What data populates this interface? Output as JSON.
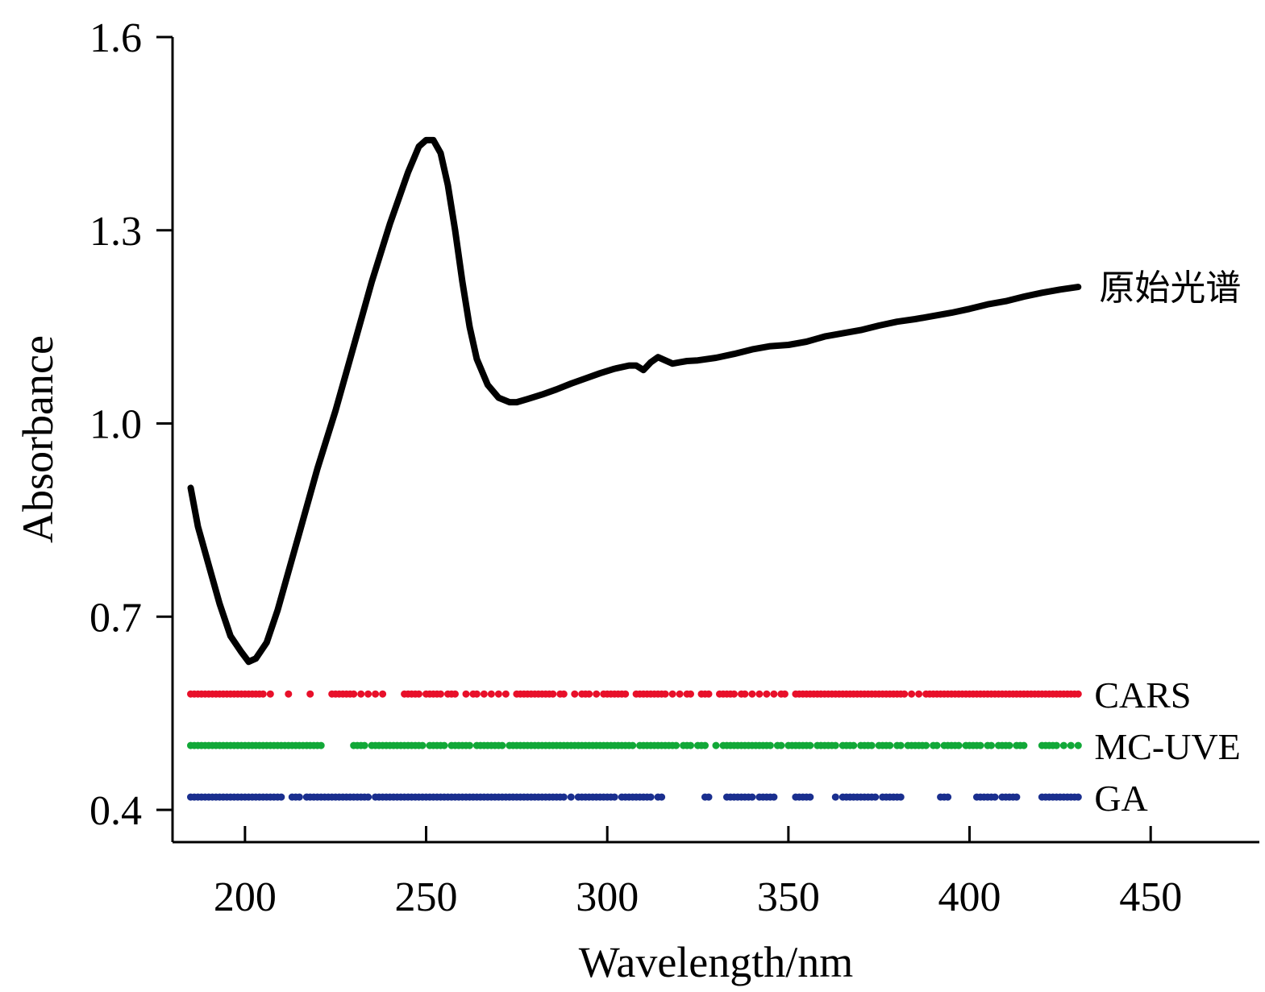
{
  "chart_data": {
    "type": "line",
    "title": "",
    "xlabel": "Wavelength/nm",
    "ylabel": "Absorbance",
    "xlim": [
      180,
      480
    ],
    "ylim": [
      0.35,
      1.6
    ],
    "x_ticks": [
      "200",
      "250",
      "300",
      "350",
      "400",
      "450"
    ],
    "x_tick_values": [
      200,
      250,
      300,
      350,
      400,
      450
    ],
    "y_ticks": [
      "0.4",
      "0.7",
      "1.0",
      "1.3",
      "1.6"
    ],
    "y_tick_values": [
      0.4,
      0.7,
      1.0,
      1.3,
      1.6
    ],
    "grid": false,
    "legend": "none",
    "series": [
      {
        "name": "原始光谱",
        "kind": "line",
        "color": "#000000",
        "x": [
          185,
          187,
          190,
          193,
          196,
          199,
          201,
          203,
          206,
          209,
          212,
          215,
          220,
          225,
          230,
          235,
          240,
          245,
          248,
          250,
          252,
          254,
          256,
          258,
          260,
          262,
          264,
          267,
          270,
          273,
          275,
          278,
          282,
          286,
          290,
          294,
          298,
          302,
          306,
          308,
          310,
          312,
          314,
          316,
          318,
          320,
          322,
          325,
          330,
          335,
          340,
          345,
          350,
          355,
          360,
          365,
          370,
          375,
          380,
          385,
          390,
          395,
          400,
          405,
          410,
          415,
          420,
          425,
          430
        ],
        "y": [
          0.9,
          0.84,
          0.78,
          0.72,
          0.67,
          0.645,
          0.63,
          0.635,
          0.66,
          0.71,
          0.77,
          0.83,
          0.93,
          1.02,
          1.12,
          1.22,
          1.31,
          1.39,
          1.43,
          1.44,
          1.44,
          1.42,
          1.37,
          1.3,
          1.22,
          1.15,
          1.1,
          1.06,
          1.04,
          1.033,
          1.033,
          1.038,
          1.045,
          1.053,
          1.062,
          1.07,
          1.078,
          1.085,
          1.09,
          1.09,
          1.083,
          1.095,
          1.103,
          1.098,
          1.093,
          1.095,
          1.097,
          1.098,
          1.102,
          1.108,
          1.115,
          1.12,
          1.122,
          1.127,
          1.135,
          1.14,
          1.145,
          1.152,
          1.158,
          1.162,
          1.167,
          1.172,
          1.178,
          1.185,
          1.19,
          1.197,
          1.203,
          1.208,
          1.212
        ]
      },
      {
        "name": "CARS",
        "kind": "points",
        "color": "#e8102a",
        "y": 0.58,
        "x": [
          185,
          186,
          187,
          188,
          189,
          190,
          191,
          192,
          193,
          194,
          195,
          196,
          197,
          198,
          199,
          200,
          201,
          202,
          203,
          204,
          205,
          207,
          212,
          218,
          224,
          225,
          226,
          227,
          228,
          229,
          230,
          232,
          234,
          236,
          238,
          244,
          245,
          246,
          247,
          248,
          250,
          251,
          252,
          253,
          254,
          256,
          257,
          258,
          261,
          263,
          264,
          266,
          268,
          270,
          272,
          275,
          276,
          277,
          278,
          279,
          280,
          281,
          282,
          283,
          284,
          285,
          287,
          288,
          291,
          293,
          294,
          295,
          297,
          299,
          300,
          301,
          302,
          303,
          304,
          305,
          308,
          309,
          310,
          311,
          312,
          313,
          314,
          315,
          316,
          318,
          320,
          322,
          323,
          326,
          327,
          328,
          331,
          332,
          333,
          334,
          335,
          337,
          338,
          340,
          342,
          344,
          346,
          348,
          349,
          352,
          353,
          354,
          355,
          356,
          357,
          358,
          359,
          360,
          361,
          362,
          363,
          364,
          365,
          366,
          367,
          368,
          369,
          370,
          371,
          372,
          373,
          374,
          375,
          376,
          377,
          378,
          379,
          380,
          381,
          382,
          384,
          386,
          388,
          389,
          390,
          391,
          392,
          393,
          394,
          395,
          396,
          397,
          398,
          399,
          400,
          401,
          402,
          403,
          404,
          405,
          406,
          407,
          408,
          409,
          410,
          411,
          412,
          413,
          414,
          415,
          416,
          417,
          418,
          419,
          420,
          421,
          422,
          423,
          424,
          425,
          426,
          427,
          428,
          429,
          430
        ]
      },
      {
        "name": "MC-UVE",
        "kind": "points",
        "color": "#12a838",
        "y": 0.5,
        "x": [
          185,
          186,
          187,
          188,
          189,
          190,
          191,
          192,
          193,
          194,
          195,
          196,
          197,
          198,
          199,
          200,
          201,
          202,
          203,
          204,
          205,
          206,
          207,
          208,
          209,
          210,
          211,
          212,
          213,
          214,
          215,
          216,
          217,
          218,
          219,
          220,
          221,
          230,
          231,
          232,
          233,
          235,
          236,
          237,
          238,
          239,
          240,
          241,
          242,
          243,
          244,
          245,
          246,
          247,
          248,
          249,
          251,
          252,
          253,
          254,
          255,
          257,
          258,
          259,
          260,
          261,
          262,
          264,
          265,
          266,
          267,
          268,
          269,
          270,
          271,
          273,
          274,
          275,
          276,
          277,
          278,
          279,
          280,
          281,
          282,
          283,
          284,
          285,
          286,
          287,
          288,
          289,
          290,
          291,
          292,
          293,
          294,
          295,
          296,
          297,
          298,
          299,
          300,
          301,
          302,
          303,
          304,
          305,
          306,
          307,
          309,
          310,
          311,
          312,
          313,
          314,
          315,
          316,
          317,
          318,
          319,
          321,
          322,
          323,
          325,
          326,
          327,
          330,
          332,
          333,
          334,
          335,
          336,
          337,
          338,
          339,
          340,
          341,
          342,
          343,
          344,
          345,
          347,
          348,
          350,
          351,
          352,
          353,
          354,
          355,
          356,
          358,
          359,
          360,
          361,
          362,
          363,
          365,
          366,
          367,
          368,
          370,
          371,
          372,
          373,
          375,
          376,
          377,
          378,
          380,
          381,
          383,
          384,
          385,
          386,
          387,
          388,
          390,
          391,
          393,
          394,
          395,
          396,
          397,
          399,
          400,
          401,
          402,
          403,
          405,
          406,
          408,
          409,
          410,
          411,
          413,
          414,
          415,
          420,
          421,
          422,
          423,
          424,
          426,
          428,
          430
        ]
      },
      {
        "name": "GA",
        "kind": "points",
        "color": "#1a2f8f",
        "y": 0.42,
        "x": [
          185,
          186,
          187,
          188,
          189,
          190,
          191,
          192,
          193,
          194,
          195,
          196,
          197,
          198,
          199,
          200,
          201,
          202,
          203,
          204,
          205,
          206,
          207,
          208,
          209,
          210,
          213,
          214,
          215,
          217,
          218,
          219,
          220,
          221,
          222,
          223,
          224,
          225,
          226,
          227,
          228,
          229,
          230,
          231,
          232,
          233,
          234,
          236,
          237,
          238,
          239,
          240,
          241,
          242,
          243,
          244,
          245,
          246,
          247,
          248,
          249,
          250,
          251,
          252,
          253,
          254,
          255,
          256,
          257,
          258,
          259,
          260,
          261,
          262,
          263,
          264,
          265,
          266,
          267,
          268,
          269,
          270,
          271,
          272,
          273,
          274,
          275,
          276,
          277,
          278,
          279,
          280,
          281,
          282,
          283,
          284,
          285,
          286,
          287,
          288,
          290,
          292,
          293,
          294,
          295,
          296,
          297,
          298,
          299,
          300,
          301,
          302,
          304,
          305,
          306,
          307,
          308,
          309,
          310,
          311,
          312,
          314,
          315,
          327,
          328,
          333,
          334,
          335,
          336,
          337,
          338,
          339,
          340,
          342,
          343,
          344,
          345,
          346,
          352,
          353,
          354,
          355,
          356,
          363,
          365,
          366,
          367,
          368,
          369,
          370,
          371,
          372,
          373,
          374,
          376,
          377,
          378,
          379,
          380,
          381,
          392,
          393,
          394,
          402,
          403,
          404,
          405,
          406,
          407,
          409,
          410,
          411,
          412,
          413,
          420,
          421,
          422,
          423,
          424,
          425,
          426,
          427,
          428,
          429,
          430
        ]
      }
    ]
  }
}
